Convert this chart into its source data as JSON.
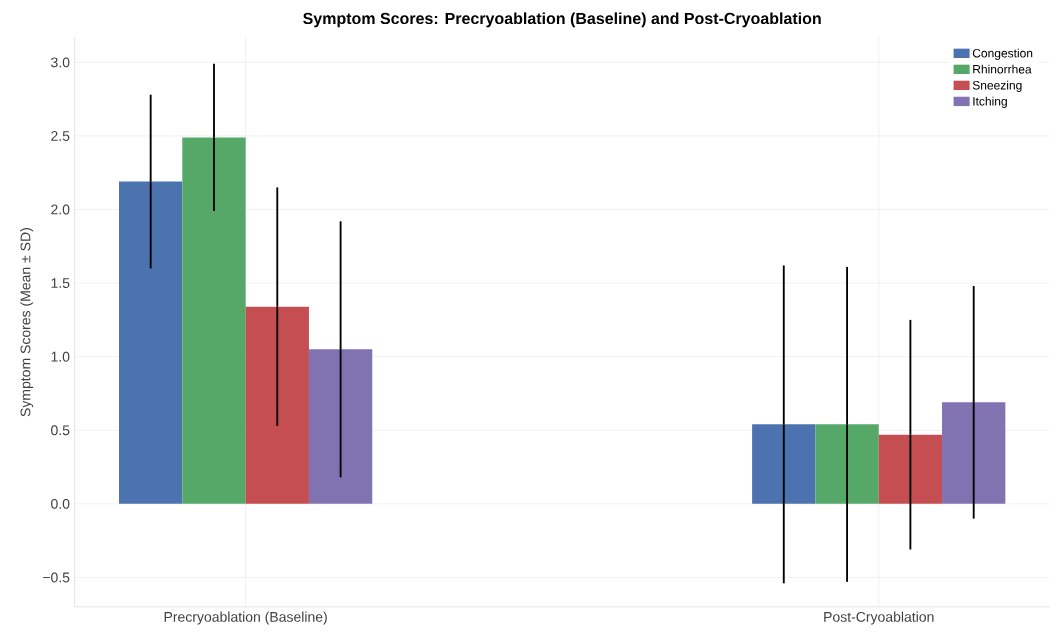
{
  "chart_data": {
    "type": "bar",
    "title": "Symptom Scores: Precryoablation (Baseline) and Post-Cryoablation",
    "ylabel": "Symptom Scores (Mean ± SD)",
    "categories": [
      "Precryoablation (Baseline)",
      "Post-Cryoablation"
    ],
    "series": [
      {
        "name": "Congestion",
        "color": "#4c72b0",
        "values": [
          2.19,
          0.54
        ],
        "errors": [
          0.59,
          1.08
        ]
      },
      {
        "name": "Rhinorrhea",
        "color": "#55a868",
        "values": [
          2.49,
          0.54
        ],
        "errors": [
          0.5,
          1.07
        ]
      },
      {
        "name": "Sneezing",
        "color": "#c44e52",
        "values": [
          1.34,
          0.47
        ],
        "errors": [
          0.81,
          0.78
        ]
      },
      {
        "name": "Itching",
        "color": "#8172b2",
        "values": [
          1.05,
          0.69
        ],
        "errors": [
          0.87,
          0.79
        ]
      }
    ],
    "ylim": [
      -0.7,
      3.17
    ],
    "yticks": [
      {
        "value": -0.5,
        "label": "−0.5"
      },
      {
        "value": 0,
        "label": "0.0"
      },
      {
        "value": 0.5,
        "label": "0.5"
      },
      {
        "value": 1,
        "label": "1.0"
      },
      {
        "value": 1.5,
        "label": "1.5"
      },
      {
        "value": 2,
        "label": "2.0"
      },
      {
        "value": 2.5,
        "label": "2.5"
      },
      {
        "value": 3,
        "label": "3.0"
      }
    ],
    "grid": true,
    "legend": "top right"
  }
}
